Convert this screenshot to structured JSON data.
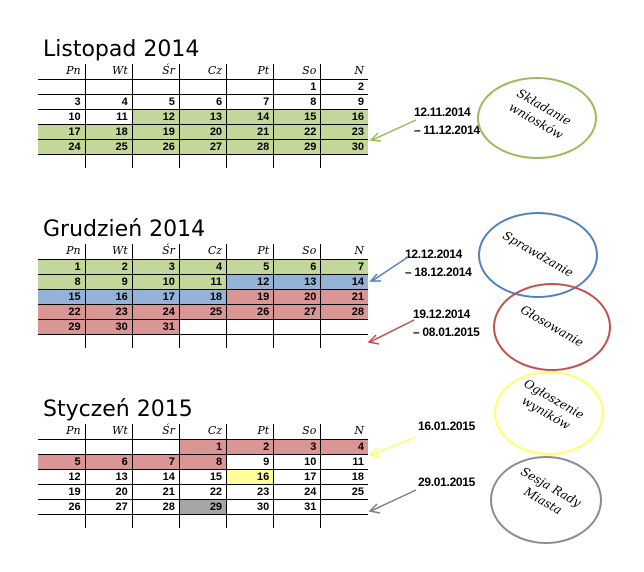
{
  "weekdays": [
    "Pn",
    "Wt",
    "Śr",
    "Cz",
    "Pt",
    "So",
    "N"
  ],
  "months": [
    {
      "title": "Listopad 2014",
      "weeks": [
        [
          [
            "",
            ""
          ],
          [
            "",
            ""
          ],
          [
            "",
            ""
          ],
          [
            "",
            ""
          ],
          [
            "",
            ""
          ],
          [
            "1",
            ""
          ],
          [
            "2",
            ""
          ]
        ],
        [
          [
            "3",
            ""
          ],
          [
            "4",
            ""
          ],
          [
            "5",
            ""
          ],
          [
            "6",
            ""
          ],
          [
            "7",
            ""
          ],
          [
            "8",
            ""
          ],
          [
            "9",
            ""
          ]
        ],
        [
          [
            "10",
            ""
          ],
          [
            "11",
            ""
          ],
          [
            "12",
            "green"
          ],
          [
            "13",
            "green"
          ],
          [
            "14",
            "green"
          ],
          [
            "15",
            "green"
          ],
          [
            "16",
            "green"
          ]
        ],
        [
          [
            "17",
            "green"
          ],
          [
            "18",
            "green"
          ],
          [
            "19",
            "green"
          ],
          [
            "20",
            "green"
          ],
          [
            "21",
            "green"
          ],
          [
            "22",
            "green"
          ],
          [
            "23",
            "green"
          ]
        ],
        [
          [
            "24",
            "green"
          ],
          [
            "25",
            "green"
          ],
          [
            "26",
            "green"
          ],
          [
            "27",
            "green"
          ],
          [
            "28",
            "green"
          ],
          [
            "29",
            "green"
          ],
          [
            "30",
            "green"
          ]
        ]
      ]
    },
    {
      "title": "Grudzień 2014",
      "weeks": [
        [
          [
            "1",
            "green"
          ],
          [
            "2",
            "green"
          ],
          [
            "3",
            "green"
          ],
          [
            "4",
            "green"
          ],
          [
            "5",
            "green"
          ],
          [
            "6",
            "green"
          ],
          [
            "7",
            "green"
          ]
        ],
        [
          [
            "8",
            "green"
          ],
          [
            "9",
            "green"
          ],
          [
            "10",
            "green"
          ],
          [
            "11",
            "green"
          ],
          [
            "12",
            "blue"
          ],
          [
            "13",
            "blue"
          ],
          [
            "14",
            "blue"
          ]
        ],
        [
          [
            "15",
            "blue"
          ],
          [
            "16",
            "blue"
          ],
          [
            "17",
            "blue"
          ],
          [
            "18",
            "blue"
          ],
          [
            "19",
            "red"
          ],
          [
            "20",
            "red"
          ],
          [
            "21",
            "red"
          ]
        ],
        [
          [
            "22",
            "red"
          ],
          [
            "23",
            "red"
          ],
          [
            "24",
            "red"
          ],
          [
            "25",
            "red"
          ],
          [
            "26",
            "red"
          ],
          [
            "27",
            "red"
          ],
          [
            "28",
            "red"
          ]
        ],
        [
          [
            "29",
            "red"
          ],
          [
            "30",
            "red"
          ],
          [
            "31",
            "red"
          ],
          [
            "",
            ""
          ],
          [
            "",
            ""
          ],
          [
            "",
            ""
          ],
          [
            "",
            ""
          ]
        ]
      ]
    },
    {
      "title": "Styczeń 2015",
      "weeks": [
        [
          [
            "",
            ""
          ],
          [
            "",
            ""
          ],
          [
            "",
            ""
          ],
          [
            "1",
            "red"
          ],
          [
            "2",
            "red"
          ],
          [
            "3",
            "red"
          ],
          [
            "4",
            "red"
          ]
        ],
        [
          [
            "5",
            "red"
          ],
          [
            "6",
            "red"
          ],
          [
            "7",
            "red"
          ],
          [
            "8",
            "red"
          ],
          [
            "9",
            ""
          ],
          [
            "10",
            ""
          ],
          [
            "11",
            ""
          ]
        ],
        [
          [
            "12",
            ""
          ],
          [
            "13",
            ""
          ],
          [
            "14",
            ""
          ],
          [
            "15",
            ""
          ],
          [
            "16",
            "yellow"
          ],
          [
            "17",
            ""
          ],
          [
            "18",
            ""
          ]
        ],
        [
          [
            "19",
            ""
          ],
          [
            "20",
            ""
          ],
          [
            "21",
            ""
          ],
          [
            "22",
            ""
          ],
          [
            "23",
            ""
          ],
          [
            "24",
            ""
          ],
          [
            "25",
            ""
          ]
        ],
        [
          [
            "26",
            ""
          ],
          [
            "27",
            ""
          ],
          [
            "28",
            ""
          ],
          [
            "29",
            "gray"
          ],
          [
            "30",
            ""
          ],
          [
            "31",
            ""
          ],
          [
            "",
            ""
          ]
        ]
      ]
    }
  ],
  "annotations": [
    {
      "date_lines": [
        "12.11.2014",
        "– 11.12.2014"
      ],
      "label_lines": [
        "Składanie",
        "wniosków"
      ],
      "color": "#9bbb59"
    },
    {
      "date_lines": [
        "12.12.2014",
        "– 18.12.2014"
      ],
      "label_lines": [
        "Sprawdzanie"
      ],
      "color": "#4f81bd"
    },
    {
      "date_lines": [
        "19.12.2014",
        "– 08.01.2015"
      ],
      "label_lines": [
        "Głosowanie"
      ],
      "color": "#c0504d"
    },
    {
      "date_lines": [
        "16.01.2015"
      ],
      "label_lines": [
        "Ogłoszenie",
        "wyników"
      ],
      "color": "#ffff66"
    },
    {
      "date_lines": [
        "29.01.2015"
      ],
      "label_lines": [
        "Sesja Rady",
        "Miasta"
      ],
      "color": "#8c8c8c"
    }
  ]
}
